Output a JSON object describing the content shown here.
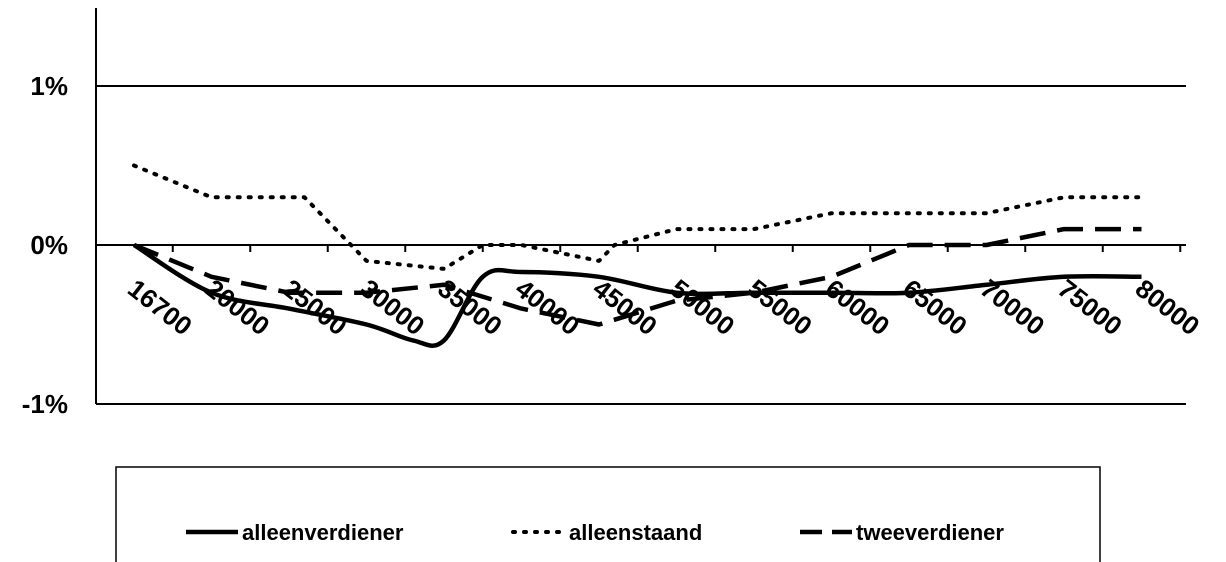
{
  "chart_data": {
    "type": "line",
    "title": "",
    "xlabel": "",
    "ylabel": "",
    "categories": [
      "16700",
      "20000",
      "25000",
      "30000",
      "35000",
      "40000",
      "45000",
      "50000",
      "55000",
      "60000",
      "65000",
      "70000",
      "75000",
      "80000"
    ],
    "y_ticks": [
      "1%",
      "0%",
      "-1%"
    ],
    "ylim": [
      -1,
      1.5
    ],
    "y_unit": "%",
    "grid": "horizontal",
    "legend_position": "bottom",
    "series": [
      {
        "name": "alleenverdiener",
        "style": "solid",
        "smooth": true,
        "x": [
          16700,
          20000,
          25000,
          30000,
          33000,
          35000,
          37500,
          40000,
          45000,
          50000,
          55000,
          60000,
          65000,
          70000,
          75000,
          80000
        ],
        "values": [
          0.0,
          -0.3,
          -0.4,
          -0.5,
          -0.6,
          -0.6,
          -0.2,
          -0.17,
          -0.2,
          -0.3,
          -0.3,
          -0.3,
          -0.3,
          -0.25,
          -0.2,
          -0.2
        ]
      },
      {
        "name": "alleenstaand",
        "style": "dotted",
        "smooth": false,
        "x": [
          16700,
          20000,
          25000,
          26000,
          30000,
          35000,
          37500,
          40000,
          45000,
          46000,
          50000,
          55000,
          60000,
          65000,
          70000,
          75000,
          80000
        ],
        "values": [
          0.5,
          0.3,
          0.3,
          0.3,
          -0.1,
          -0.15,
          0.0,
          0.0,
          -0.1,
          0.0,
          0.1,
          0.1,
          0.2,
          0.2,
          0.2,
          0.3,
          0.3
        ]
      },
      {
        "name": "tweeverdiener",
        "style": "dashed",
        "smooth": false,
        "x": [
          16700,
          20000,
          25000,
          30000,
          35000,
          40000,
          45000,
          50000,
          55000,
          60000,
          65000,
          70000,
          75000,
          80000
        ],
        "values": [
          0.0,
          -0.2,
          -0.3,
          -0.3,
          -0.25,
          -0.4,
          -0.5,
          -0.35,
          -0.3,
          -0.2,
          0.0,
          0.0,
          0.1,
          0.1
        ]
      }
    ]
  },
  "style": {
    "line_color": "#000000",
    "axis_color": "#000000",
    "background": "#ffffff"
  }
}
